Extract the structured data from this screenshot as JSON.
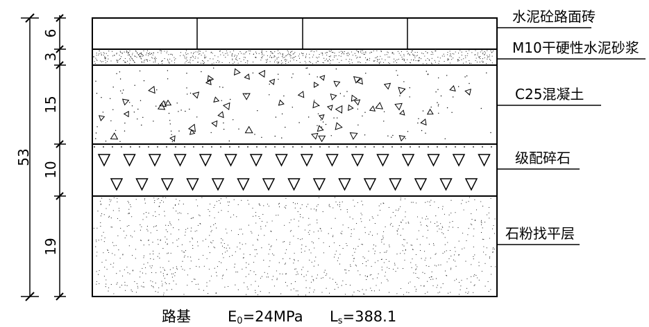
{
  "layers": [
    {
      "name": "水泥砼路面砖",
      "thickness": "6"
    },
    {
      "name": "M10干硬性水泥砂浆",
      "thickness": "3"
    },
    {
      "name": "C25混凝土",
      "thickness": "15"
    },
    {
      "name": "级配碎石",
      "thickness": "10"
    },
    {
      "name": "石粉找平层",
      "thickness": "19"
    }
  ],
  "total_thickness": "53",
  "footer": {
    "subgrade": "路基",
    "e0_prefix": "E",
    "e0_sub": "0",
    "e0_value": "=24MPa",
    "ls_prefix": "L",
    "ls_sub": "s",
    "ls_value": "=388.1"
  }
}
